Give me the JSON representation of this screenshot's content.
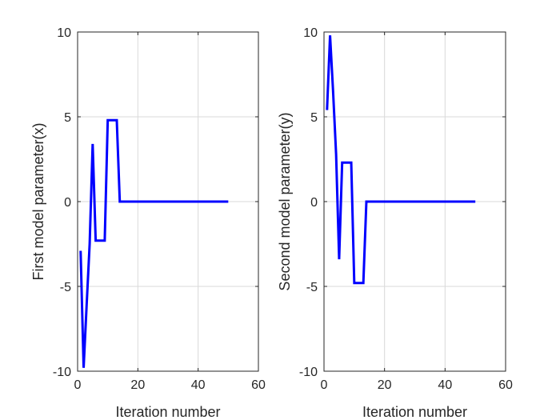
{
  "chart_data": [
    {
      "type": "line",
      "xlabel": "Iteration number",
      "ylabel": "First model parameter(x)",
      "xlim": [
        0,
        60
      ],
      "ylim": [
        -10,
        10
      ],
      "xticks": [
        0,
        20,
        40,
        60
      ],
      "yticks": [
        -10,
        -5,
        0,
        5,
        10
      ],
      "grid": true,
      "series": [
        {
          "color": "#0000ff",
          "x": [
            1,
            2,
            3,
            4,
            5,
            6,
            7,
            8,
            9,
            10,
            11,
            12,
            13,
            14,
            15,
            20,
            25,
            30,
            35,
            40,
            45,
            50
          ],
          "y": [
            -2.9,
            -9.8,
            -6.1,
            -2.5,
            3.4,
            -2.3,
            -2.3,
            -2.3,
            -2.3,
            4.8,
            4.8,
            4.8,
            4.8,
            0,
            0,
            0,
            0,
            0,
            0,
            0,
            0,
            0
          ]
        }
      ]
    },
    {
      "type": "line",
      "xlabel": "Iteration number",
      "ylabel": "Second model parameter(y)",
      "xlim": [
        0,
        60
      ],
      "ylim": [
        -10,
        10
      ],
      "xticks": [
        0,
        20,
        40,
        60
      ],
      "yticks": [
        -10,
        -5,
        0,
        5,
        10
      ],
      "grid": true,
      "series": [
        {
          "color": "#0000ff",
          "x": [
            1,
            2,
            3,
            4,
            5,
            6,
            7,
            8,
            9,
            10,
            11,
            12,
            13,
            14,
            15,
            20,
            25,
            30,
            35,
            40,
            45,
            50
          ],
          "y": [
            5.4,
            9.8,
            6.5,
            2.8,
            -3.4,
            2.3,
            2.3,
            2.3,
            2.3,
            -4.8,
            -4.8,
            -4.8,
            -4.8,
            0,
            0,
            0,
            0,
            0,
            0,
            0,
            0,
            0
          ]
        }
      ]
    }
  ]
}
